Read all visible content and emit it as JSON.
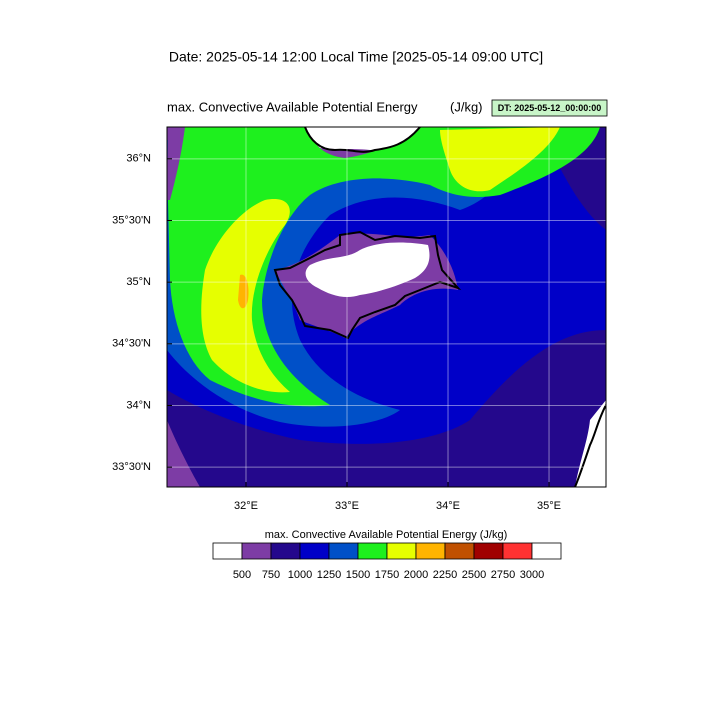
{
  "header": {
    "date": "Date: 2025-05-14  12:00 Local Time [2025-05-14  09:00 UTC]"
  },
  "map": {
    "title": "max. Convective Available Potential Energy",
    "units": "(J/kg)",
    "dt_label": "DT: 2025-05-12_00:00:00",
    "xlim": [
      31.218,
      35.564
    ],
    "ylim": [
      33.339,
      36.258
    ],
    "xticks": [
      {
        "value": 32,
        "label": "32°E"
      },
      {
        "value": 33,
        "label": "33°E"
      },
      {
        "value": 34,
        "label": "34°E"
      },
      {
        "value": 35,
        "label": "35°E"
      }
    ],
    "yticks": [
      {
        "value": 33.5,
        "label": "33°30'N"
      },
      {
        "value": 34,
        "label": "34°N"
      },
      {
        "value": 34.5,
        "label": "34°30'N"
      },
      {
        "value": 35,
        "label": "35°N"
      },
      {
        "value": 35.5,
        "label": "35°30'N"
      },
      {
        "value": 36,
        "label": "36°N"
      }
    ]
  },
  "colorbar": {
    "title": "max. Convective Available Potential Energy  (J/kg)",
    "levels": [
      500,
      750,
      1000,
      1250,
      1500,
      1750,
      2000,
      2250,
      2500,
      2750,
      3000
    ],
    "colors": [
      "#ffffff",
      "#7d3ca5",
      "#24088c",
      "#0000c8",
      "#0050c8",
      "#1ef01e",
      "#e6ff00",
      "#ffb400",
      "#c05000",
      "#a00000",
      "#ff3232",
      "#ffffff"
    ]
  }
}
